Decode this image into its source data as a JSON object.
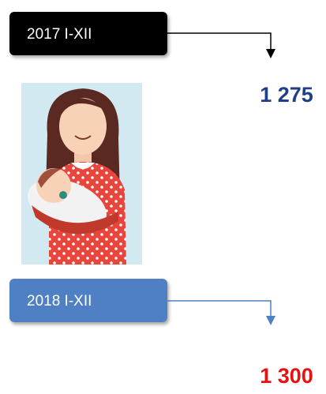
{
  "items": [
    {
      "label": "2017 I-XII",
      "value": "1 275"
    },
    {
      "label": "2018 I-XII",
      "value": "1 300"
    }
  ]
}
